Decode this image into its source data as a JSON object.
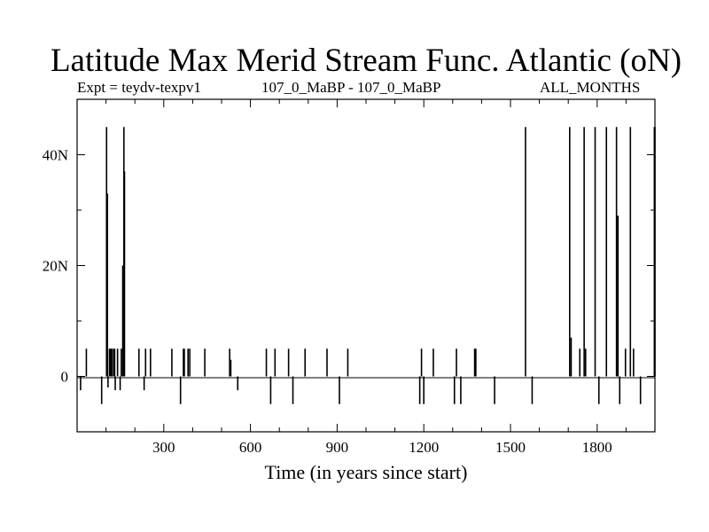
{
  "chart_data": {
    "type": "line",
    "title": "Latitude Max Merid Stream Func. Atlantic (oN)",
    "subtitle_left": "Expt = teydv-texpv1",
    "subtitle_center": "107_0_MaBP - 107_0_MaBP",
    "subtitle_right": "ALL_MONTHS",
    "xlabel": "Time (in years since start)",
    "ylabel": "",
    "xlim": [
      0,
      2000
    ],
    "ylim": [
      -10,
      50
    ],
    "xticks": [
      {
        "value": 300,
        "label": "300"
      },
      {
        "value": 600,
        "label": "600"
      },
      {
        "value": 900,
        "label": "900"
      },
      {
        "value": 1200,
        "label": "1200"
      },
      {
        "value": 1500,
        "label": "1500"
      },
      {
        "value": 1800,
        "label": "1800"
      }
    ],
    "yticks": [
      {
        "value": 0,
        "label": "0"
      },
      {
        "value": 20,
        "label": "20N"
      },
      {
        "value": 40,
        "label": "40N"
      }
    ],
    "grid": false,
    "series": [
      {
        "values": [
          [
            12,
            -2.5
          ],
          [
            32,
            5
          ],
          [
            85,
            -5
          ],
          [
            102,
            45
          ],
          [
            105,
            33
          ],
          [
            107,
            -2
          ],
          [
            112,
            5
          ],
          [
            116,
            5
          ],
          [
            120,
            5
          ],
          [
            126,
            5
          ],
          [
            130,
            5
          ],
          [
            132,
            -2.5
          ],
          [
            140,
            5
          ],
          [
            149,
            -2.5
          ],
          [
            153,
            5
          ],
          [
            158,
            20
          ],
          [
            162,
            45
          ],
          [
            164,
            37
          ],
          [
            214,
            5
          ],
          [
            232,
            -2.5
          ],
          [
            237,
            5
          ],
          [
            254,
            5
          ],
          [
            328,
            5
          ],
          [
            358,
            -5
          ],
          [
            368,
            5
          ],
          [
            371,
            5
          ],
          [
            384,
            5
          ],
          [
            390,
            5
          ],
          [
            442,
            5
          ],
          [
            528,
            5
          ],
          [
            532,
            3
          ],
          [
            556,
            -2.5
          ],
          [
            655,
            5
          ],
          [
            670,
            -5
          ],
          [
            685,
            5
          ],
          [
            732,
            5
          ],
          [
            747,
            -5
          ],
          [
            789,
            5
          ],
          [
            865,
            5
          ],
          [
            908,
            -5
          ],
          [
            937,
            5
          ],
          [
            1186,
            -5
          ],
          [
            1192,
            5
          ],
          [
            1200,
            -5
          ],
          [
            1233,
            5
          ],
          [
            1306,
            -5
          ],
          [
            1313,
            5
          ],
          [
            1328,
            -5
          ],
          [
            1376,
            5
          ],
          [
            1380,
            5
          ],
          [
            1445,
            -5
          ],
          [
            1552,
            45
          ],
          [
            1575,
            -5
          ],
          [
            1705,
            45
          ],
          [
            1710,
            7
          ],
          [
            1740,
            5
          ],
          [
            1755,
            45
          ],
          [
            1760,
            5
          ],
          [
            1793,
            45
          ],
          [
            1806,
            -5
          ],
          [
            1832,
            45
          ],
          [
            1867,
            45
          ],
          [
            1872,
            29
          ],
          [
            1878,
            -5
          ],
          [
            1898,
            5
          ],
          [
            1915,
            45
          ],
          [
            1926,
            5
          ],
          [
            1950,
            -5
          ],
          [
            1998,
            45
          ],
          [
            2000,
            45
          ]
        ]
      }
    ]
  }
}
